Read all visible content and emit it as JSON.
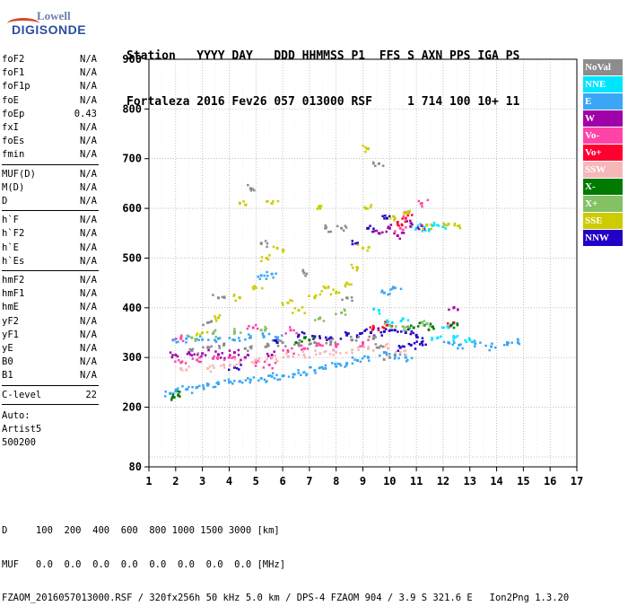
{
  "logo": {
    "line1": "Lowell",
    "line2": "DIGISONDE"
  },
  "header": {
    "line1": "Station   YYYY DAY   DDD HHMMSS P1  FFS S AXN PPS IGA PS",
    "line2": "Fortaleza 2016 Fev26 057 013000 RSF     1 714 100 10+ 11"
  },
  "params": {
    "group1": [
      {
        "name": "foF2",
        "value": "N/A"
      },
      {
        "name": "foF1",
        "value": "N/A"
      },
      {
        "name": "foF1p",
        "value": "N/A"
      },
      {
        "name": "foE",
        "value": "N/A"
      },
      {
        "name": "foEp",
        "value": "0.43"
      },
      {
        "name": "fxI",
        "value": "N/A"
      },
      {
        "name": "foEs",
        "value": "N/A"
      },
      {
        "name": "fmin",
        "value": "N/A"
      }
    ],
    "group2": [
      {
        "name": "MUF(D)",
        "value": "N/A"
      },
      {
        "name": "M(D)",
        "value": "N/A"
      },
      {
        "name": "D",
        "value": "N/A"
      }
    ],
    "group3": [
      {
        "name": "h`F",
        "value": "N/A"
      },
      {
        "name": "h`F2",
        "value": "N/A"
      },
      {
        "name": "h`E",
        "value": "N/A"
      },
      {
        "name": "h`Es",
        "value": "N/A"
      }
    ],
    "group4": [
      {
        "name": "hmF2",
        "value": "N/A"
      },
      {
        "name": "hmF1",
        "value": "N/A"
      },
      {
        "name": "hmE",
        "value": "N/A"
      },
      {
        "name": "yF2",
        "value": "N/A"
      },
      {
        "name": "yF1",
        "value": "N/A"
      },
      {
        "name": "yE",
        "value": "N/A"
      },
      {
        "name": "B0",
        "value": "N/A"
      },
      {
        "name": "B1",
        "value": "N/A"
      }
    ],
    "clevel": {
      "name": "C-level",
      "value": "22"
    },
    "auto": [
      "Auto:",
      "Artist5",
      "500200"
    ]
  },
  "legend": [
    {
      "label": "NoVal",
      "color": "#8c8c8c"
    },
    {
      "label": "NNE",
      "color": "#00e5ff"
    },
    {
      "label": "E",
      "color": "#3ba6f5"
    },
    {
      "label": "W",
      "color": "#a000a8"
    },
    {
      "label": "Vo-",
      "color": "#ff44a8"
    },
    {
      "label": "Vo+",
      "color": "#ff0030"
    },
    {
      "label": "SSW",
      "color": "#f5b8b8"
    },
    {
      "label": "X-",
      "color": "#007a00"
    },
    {
      "label": "X+",
      "color": "#84c064"
    },
    {
      "label": "SSE",
      "color": "#cccc00"
    },
    {
      "label": "NNW",
      "color": "#2200c8"
    }
  ],
  "footer": {
    "line1": "D     100  200  400  600  800 1000 1500 3000 [km]",
    "line2": "MUF   0.0  0.0  0.0  0.0  0.0  0.0  0.0  0.0 [MHz]",
    "line3": "FZAOM_2016057013000.RSF / 320fx256h 50 kHz 5.0 km / DPS-4 FZAOM 904 / 3.9 S 321.6 E   Ion2Png 1.3.20"
  },
  "chart_data": {
    "type": "scatter",
    "title": "",
    "xlabel": "",
    "ylabel": "",
    "xlim": [
      1,
      17
    ],
    "ylim": [
      80,
      900
    ],
    "xticks": [
      1,
      2,
      3,
      4,
      5,
      6,
      7,
      8,
      9,
      10,
      11,
      12,
      13,
      14,
      15,
      16,
      17
    ],
    "yticks": [
      80,
      200,
      300,
      400,
      500,
      600,
      700,
      800,
      900
    ],
    "grid": true,
    "legend_position": "right",
    "series": [
      {
        "legend_index": 2,
        "points": [
          [
            1.8,
            228
          ],
          [
            2,
            232
          ],
          [
            2.4,
            236
          ],
          [
            2.8,
            240
          ],
          [
            3.2,
            244
          ],
          [
            3.6,
            247
          ],
          [
            4,
            250
          ],
          [
            4.4,
            252
          ],
          [
            4.8,
            255
          ],
          [
            5.2,
            258
          ],
          [
            5.6,
            262
          ],
          [
            6,
            263
          ],
          [
            6.4,
            266
          ],
          [
            6.8,
            270
          ],
          [
            7.2,
            274
          ],
          [
            7.6,
            278
          ],
          [
            8,
            282
          ],
          [
            8.4,
            288
          ],
          [
            8.8,
            294
          ],
          [
            9.2,
            300
          ],
          [
            9.8,
            310
          ],
          [
            10.2,
            305
          ],
          [
            10.6,
            300
          ],
          [
            1.9,
            335
          ],
          [
            2.4,
            338
          ],
          [
            3,
            336
          ],
          [
            3.6,
            338
          ],
          [
            4.2,
            335
          ],
          [
            4.8,
            340
          ],
          [
            5.3,
            342
          ],
          [
            5.8,
            338
          ],
          [
            5.2,
            465
          ],
          [
            5.6,
            468
          ],
          [
            9.8,
            430
          ],
          [
            10.2,
            440
          ],
          [
            12.2,
            330
          ],
          [
            12.6,
            325
          ],
          [
            13.2,
            328
          ],
          [
            13.8,
            322
          ],
          [
            14.4,
            326
          ],
          [
            14.8,
            330
          ]
        ]
      },
      {
        "legend_index": 1,
        "points": [
          [
            11,
            560
          ],
          [
            11.3,
            562
          ],
          [
            11.6,
            565
          ],
          [
            12,
            563
          ],
          [
            9.6,
            395
          ],
          [
            10.1,
            370
          ],
          [
            10.5,
            378
          ],
          [
            12.4,
            340
          ],
          [
            13,
            335
          ],
          [
            12.2,
            360
          ],
          [
            11.8,
            340
          ]
        ]
      },
      {
        "legend_index": 10,
        "points": [
          [
            6.6,
            345
          ],
          [
            7.2,
            342
          ],
          [
            7.8,
            340
          ],
          [
            8.4,
            345
          ],
          [
            8.9,
            348
          ],
          [
            9.3,
            350
          ],
          [
            9.8,
            352
          ],
          [
            10.2,
            355
          ],
          [
            10.6,
            350
          ],
          [
            11,
            345
          ],
          [
            10.4,
            320
          ],
          [
            10.8,
            325
          ],
          [
            11.2,
            330
          ],
          [
            4.2,
            280
          ],
          [
            5.8,
            330
          ],
          [
            9.9,
            580
          ],
          [
            8.8,
            530
          ],
          [
            9.2,
            560
          ]
        ]
      },
      {
        "legend_index": 3,
        "points": [
          [
            2,
            305
          ],
          [
            2.5,
            310
          ],
          [
            3,
            308
          ],
          [
            3.6,
            306
          ],
          [
            4.2,
            310
          ],
          [
            4.6,
            300
          ],
          [
            5.6,
            305
          ],
          [
            9.6,
            550
          ],
          [
            10,
            560
          ],
          [
            10.3,
            545
          ],
          [
            10.8,
            570
          ],
          [
            12.4,
            400
          ],
          [
            11.2,
            565
          ]
        ]
      },
      {
        "legend_index": 4,
        "points": [
          [
            2.2,
            290
          ],
          [
            2.8,
            295
          ],
          [
            3.4,
            298
          ],
          [
            4,
            300
          ],
          [
            5,
            290
          ],
          [
            5.5,
            285
          ],
          [
            6.2,
            312
          ],
          [
            6.8,
            318
          ],
          [
            7.4,
            325
          ],
          [
            8,
            322
          ],
          [
            9,
            330
          ],
          [
            10.4,
            560
          ],
          [
            10.7,
            590
          ],
          [
            11.2,
            610
          ],
          [
            2.2,
            340
          ],
          [
            4.9,
            360
          ],
          [
            6.3,
            355
          ]
        ]
      },
      {
        "legend_index": 5,
        "points": [
          [
            9.4,
            360
          ],
          [
            9.9,
            365
          ],
          [
            10.3,
            572
          ],
          [
            10.6,
            580
          ],
          [
            12.4,
            370
          ]
        ]
      },
      {
        "legend_index": 6,
        "points": [
          [
            2.4,
            275
          ],
          [
            3.2,
            278
          ],
          [
            3.8,
            285
          ],
          [
            4.4,
            290
          ],
          [
            5,
            295
          ],
          [
            5.6,
            300
          ],
          [
            6.2,
            302
          ],
          [
            6.8,
            305
          ],
          [
            7.4,
            308
          ],
          [
            8,
            310
          ],
          [
            8.6,
            315
          ],
          [
            9.2,
            318
          ],
          [
            9.8,
            322
          ],
          [
            10.4,
            310
          ]
        ]
      },
      {
        "legend_index": 7,
        "points": [
          [
            1.9,
            220
          ],
          [
            2.1,
            225
          ],
          [
            10.9,
            360
          ],
          [
            11.3,
            365
          ],
          [
            11.6,
            362
          ],
          [
            12.3,
            365
          ],
          [
            6.5,
            330
          ],
          [
            7,
            335
          ]
        ]
      },
      {
        "legend_index": 8,
        "points": [
          [
            2.6,
            340
          ],
          [
            3.4,
            348
          ],
          [
            4.2,
            352
          ],
          [
            5.2,
            355
          ],
          [
            7.4,
            380
          ],
          [
            8.2,
            390
          ],
          [
            10,
            365
          ],
          [
            10.5,
            362
          ],
          [
            11.4,
            368
          ]
        ]
      },
      {
        "legend_index": 9,
        "points": [
          [
            3,
            350
          ],
          [
            3.6,
            380
          ],
          [
            4.4,
            420
          ],
          [
            5,
            440
          ],
          [
            5.4,
            500
          ],
          [
            5.6,
            610
          ],
          [
            5.8,
            520
          ],
          [
            6.2,
            410
          ],
          [
            6.6,
            395
          ],
          [
            7.2,
            420
          ],
          [
            7.6,
            440
          ],
          [
            8,
            430
          ],
          [
            8.4,
            450
          ],
          [
            8.8,
            480
          ],
          [
            9,
            520
          ],
          [
            9.1,
            600
          ],
          [
            9.2,
            720
          ],
          [
            10.2,
            580
          ],
          [
            10.6,
            590
          ],
          [
            11.4,
            566
          ],
          [
            12.2,
            568
          ],
          [
            12.6,
            565
          ],
          [
            4.4,
            610
          ],
          [
            7.4,
            600
          ]
        ]
      },
      {
        "legend_index": 0,
        "points": [
          [
            2.6,
            315
          ],
          [
            3.2,
            320
          ],
          [
            3.8,
            325
          ],
          [
            4.6,
            318
          ],
          [
            5.4,
            322
          ],
          [
            6,
            330
          ],
          [
            6.6,
            328
          ],
          [
            7.2,
            330
          ],
          [
            7.8,
            332
          ],
          [
            8.6,
            335
          ],
          [
            9.4,
            338
          ],
          [
            9.6,
            320
          ],
          [
            10,
            300
          ],
          [
            3.6,
            420
          ],
          [
            5.2,
            530
          ],
          [
            6.8,
            470
          ],
          [
            8.4,
            420
          ],
          [
            4.8,
            640
          ],
          [
            8.2,
            560
          ],
          [
            9.6,
            690
          ],
          [
            3.2,
            370
          ],
          [
            7.6,
            560
          ]
        ]
      }
    ]
  }
}
